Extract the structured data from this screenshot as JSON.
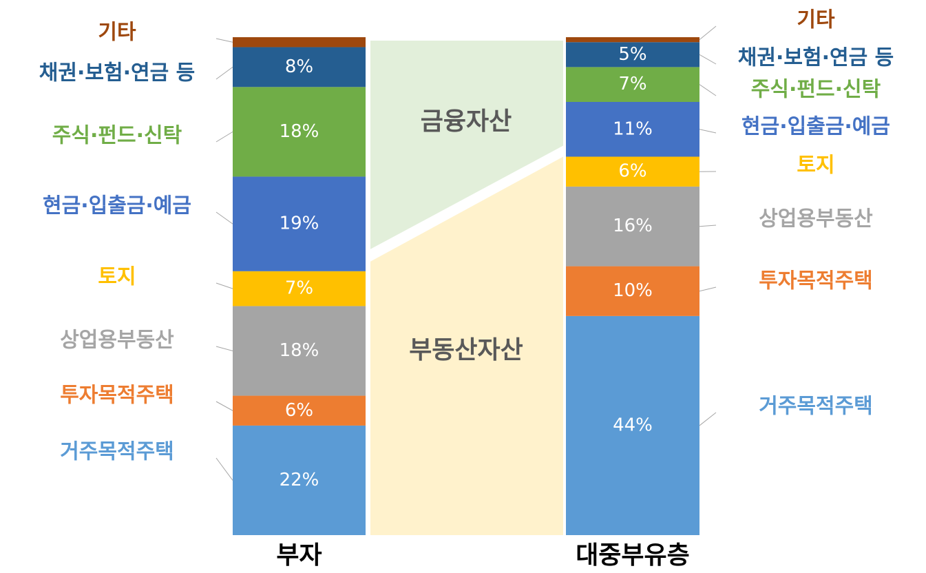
{
  "chart_data": {
    "type": "stacked_bar",
    "categories": [
      "부자",
      "대중부유층"
    ],
    "ylim": [
      0,
      100
    ],
    "annotations": [
      "금융자산",
      "부동산자산"
    ],
    "series": [
      {
        "name": "거주목적주택",
        "color": "#5b9bd5",
        "values": [
          22,
          44
        ],
        "value_labels": [
          "22%",
          "44%"
        ]
      },
      {
        "name": "투자목적주택",
        "color": "#ed7d31",
        "values": [
          6,
          10
        ],
        "value_labels": [
          "6%",
          "10%"
        ]
      },
      {
        "name": "상업용부동산",
        "color": "#a5a5a5",
        "values": [
          18,
          16
        ],
        "value_labels": [
          "18%",
          "16%"
        ]
      },
      {
        "name": "토지",
        "color": "#ffc000",
        "values": [
          7,
          6
        ],
        "value_labels": [
          "7%",
          "6%"
        ]
      },
      {
        "name": "현금·입출금·예금",
        "color": "#4472c4",
        "values": [
          19,
          11
        ],
        "value_labels": [
          "19%",
          "11%"
        ]
      },
      {
        "name": "주식·펀드·신탁",
        "color": "#70ad47",
        "values": [
          18,
          7
        ],
        "value_labels": [
          "18%",
          "7%"
        ]
      },
      {
        "name": "채권·보험·연금 등",
        "color": "#255e91",
        "values": [
          8,
          5
        ],
        "value_labels": [
          "8%",
          "5%"
        ]
      },
      {
        "name": "기타",
        "color": "#9e480e",
        "values": [
          2,
          1
        ]
      }
    ]
  }
}
